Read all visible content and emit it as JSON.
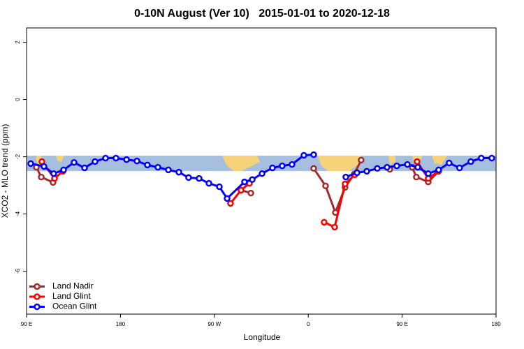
{
  "chart_data": {
    "type": "line",
    "title": "0-10N August (Ver 10)   2015-01-01 to 2020-12-18",
    "x_label": "Longitude",
    "y_label": "XCO2 - MLO trend (ppm)",
    "xlim": [
      90,
      540
    ],
    "ylim": [
      -7.5,
      2.5
    ],
    "xticks": [
      {
        "value": 90,
        "label": "90 E"
      },
      180,
      {
        "value": 270,
        "label": "90 W"
      },
      {
        "value": 360,
        "label": "0"
      },
      {
        "value": 450,
        "label": "90 E"
      },
      {
        "value": 540,
        "label": "180"
      }
    ],
    "yticks": [
      2,
      0,
      -2,
      -4,
      -6
    ],
    "legend": "bottom-left",
    "series": [
      {
        "name": "Land Nadir",
        "color": "#a52a2a",
        "x": [
          99.4,
          104.1,
          115.4,
          null,
          295.6,
          305.0,
          null,
          365.2,
          376.6,
          386.0,
          395.3,
          404.0,
          410.7,
          null,
          438.2,
          null,
          459.7,
          463.6,
          475.0,
          485.0
        ],
        "values": [
          -2.37,
          -2.71,
          -2.9,
          null,
          -3.17,
          -3.27,
          null,
          -2.41,
          -3.02,
          -3.95,
          -3.07,
          -2.61,
          -2.12,
          null,
          -2.44,
          null,
          -2.37,
          -2.71,
          -2.88,
          -2.51
        ]
      },
      {
        "name": "Land Glint",
        "color": "#ff0000",
        "x": [
          104.7,
          116.8,
          124.8,
          null,
          285.5,
          295.6,
          303.6,
          null,
          375.2,
          385.3,
          395.3,
          404.7,
          null,
          464.3,
          475.0,
          484.4
        ],
        "values": [
          -2.17,
          -2.76,
          -2.51,
          null,
          -3.63,
          -3.17,
          -2.93,
          null,
          -4.29,
          -4.46,
          -2.95,
          -2.63,
          null,
          -2.17,
          -2.76,
          -2.51
        ]
      },
      {
        "name": "Ocean Glint",
        "color": "#0000ff",
        "x": [
          94,
          106.7,
          116,
          125.5,
          135.5,
          145.6,
          155.6,
          165.7,
          175.7,
          185.8,
          195.8,
          205.8,
          215.9,
          225.9,
          236,
          245.3,
          255.4,
          264.8,
          274.8,
          282.2,
          298.9,
          306.3,
          315.7,
          325.7,
          335,
          344.4,
          355.8,
          365.2,
          null,
          396,
          406.7,
          416.1,
          426.2,
          435.5,
          444.9,
          455,
          465,
          475,
          485,
          495,
          505,
          515.8,
          525.8,
          535.9
        ],
        "values": [
          -2.24,
          -2.34,
          -2.59,
          -2.46,
          -2.2,
          -2.39,
          -2.17,
          -2.05,
          -2.05,
          -2.1,
          -2.15,
          -2.29,
          -2.37,
          -2.46,
          -2.54,
          -2.73,
          -2.76,
          -2.93,
          -3.05,
          -3.46,
          -2.88,
          -2.8,
          -2.59,
          -2.39,
          -2.32,
          -2.27,
          -1.95,
          -1.93,
          null,
          -2.71,
          -2.56,
          -2.51,
          -2.41,
          -2.37,
          -2.32,
          -2.27,
          -2.37,
          -2.59,
          -2.46,
          -2.22,
          -2.39,
          -2.17,
          -2.05,
          -2.05
        ]
      }
    ]
  }
}
